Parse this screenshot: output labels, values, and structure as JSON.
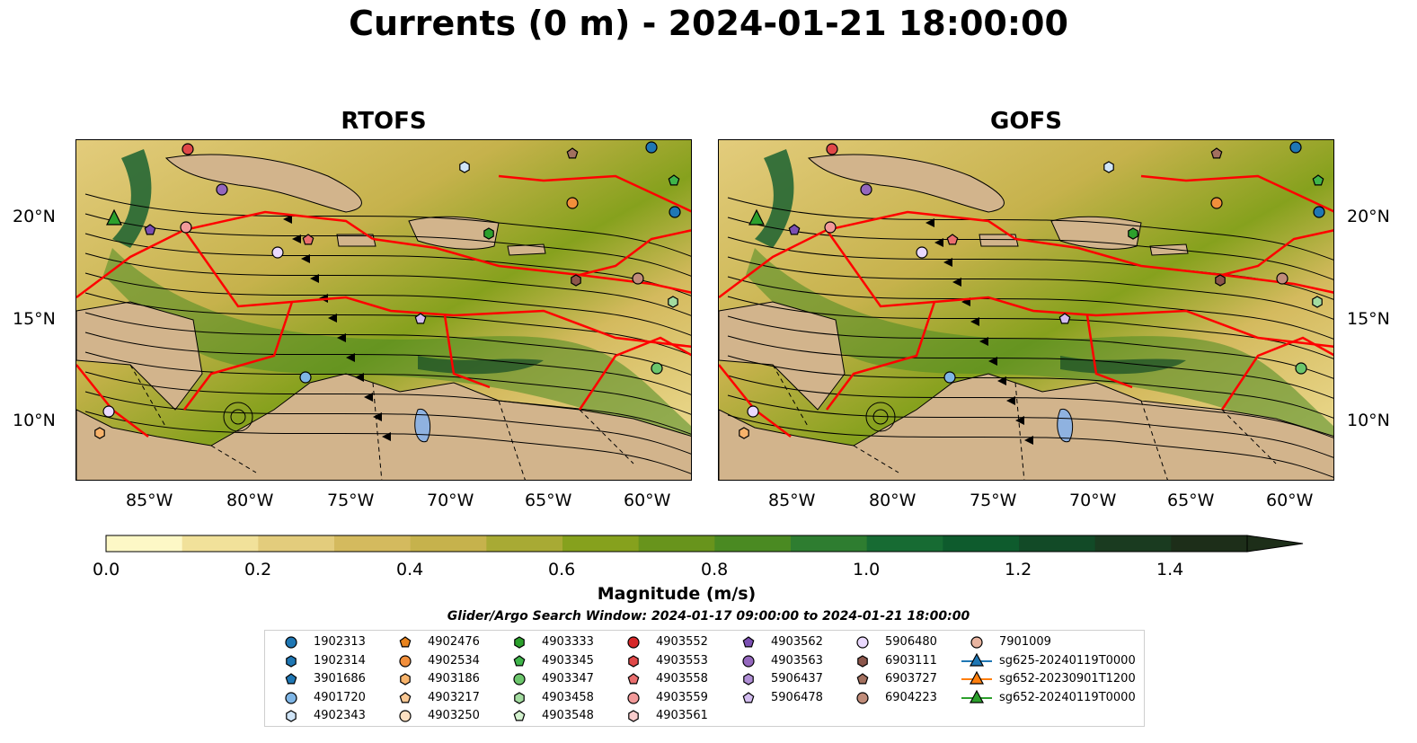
{
  "title": "Currents (0 m) - 2024-01-21 18:00:00",
  "panels": [
    {
      "title": "RTOFS"
    },
    {
      "title": "GOFS"
    }
  ],
  "x_ticks": [
    "85°W",
    "80°W",
    "75°W",
    "70°W",
    "65°W",
    "60°W"
  ],
  "y_ticks": [
    "20°N",
    "15°N",
    "10°N"
  ],
  "colorbar": {
    "label": "Magnitude (m/s)",
    "ticks": [
      "0.0",
      "0.2",
      "0.4",
      "0.6",
      "0.8",
      "1.0",
      "1.2",
      "1.4"
    ],
    "range": [
      0,
      1.5
    ],
    "extend": "max",
    "colors": [
      "#fdf8c6",
      "#f1e19a",
      "#e3cc7c",
      "#d4ba5e",
      "#c6b24c",
      "#a8aa34",
      "#86a11d",
      "#68941c",
      "#4a8a22",
      "#2e7d30",
      "#176b33",
      "#0e5b2d",
      "#124a27",
      "#1a3b20",
      "#1d2e19"
    ]
  },
  "search_window": "Glider/Argo Search Window: 2024-01-17 09:00:00 to 2024-01-21 18:00:00",
  "legend": [
    {
      "label": "1902313",
      "marker": "circle",
      "color": "#1f77b4"
    },
    {
      "label": "1902314",
      "marker": "hexagon",
      "color": "#1f77b4"
    },
    {
      "label": "3901686",
      "marker": "pentagon",
      "color": "#1f77b4"
    },
    {
      "label": "4901720",
      "marker": "circle",
      "color": "#7fb6e6"
    },
    {
      "label": "4902343",
      "marker": "hexagon",
      "color": "#cfe4f7"
    },
    {
      "label": "4902476",
      "marker": "pentagon",
      "color": "#e8831e"
    },
    {
      "label": "4902534",
      "marker": "circle",
      "color": "#f28f3b"
    },
    {
      "label": "4903186",
      "marker": "hexagon",
      "color": "#f7b36b"
    },
    {
      "label": "4903217",
      "marker": "pentagon",
      "color": "#f9c894"
    },
    {
      "label": "4903250",
      "marker": "circle",
      "color": "#fde0c2"
    },
    {
      "label": "4903333",
      "marker": "hexagon",
      "color": "#2ca02c"
    },
    {
      "label": "4903345",
      "marker": "pentagon",
      "color": "#3fb54a"
    },
    {
      "label": "4903347",
      "marker": "circle",
      "color": "#6cc66c"
    },
    {
      "label": "4903458",
      "marker": "hexagon",
      "color": "#a3dca0"
    },
    {
      "label": "4903548",
      "marker": "pentagon",
      "color": "#d4f2cf"
    },
    {
      "label": "4903552",
      "marker": "circle",
      "color": "#d62728"
    },
    {
      "label": "4903553",
      "marker": "hexagon",
      "color": "#e04848"
    },
    {
      "label": "4903558",
      "marker": "pentagon",
      "color": "#ea6e6e"
    },
    {
      "label": "4903559",
      "marker": "circle",
      "color": "#f29a9a"
    },
    {
      "label": "4903561",
      "marker": "hexagon",
      "color": "#f8cccc"
    },
    {
      "label": "4903562",
      "marker": "pentagon",
      "color": "#7b4fb3"
    },
    {
      "label": "4903563",
      "marker": "circle",
      "color": "#9467bd"
    },
    {
      "label": "5906437",
      "marker": "hexagon",
      "color": "#b08fd6"
    },
    {
      "label": "5906478",
      "marker": "pentagon",
      "color": "#d3bdf0"
    },
    {
      "label": "5906480",
      "marker": "circle",
      "color": "#ead9ff"
    },
    {
      "label": "6903111",
      "marker": "hexagon",
      "color": "#8c564b"
    },
    {
      "label": "6903727",
      "marker": "pentagon",
      "color": "#a3705f"
    },
    {
      "label": "6904223",
      "marker": "circle",
      "color": "#c08c7a"
    },
    {
      "label": "7901009",
      "marker": "circle",
      "color": "#e8b4a0"
    },
    {
      "label": "sg625-20240119T0000",
      "marker": "triangle-line",
      "color": "#1f77b4"
    },
    {
      "label": "sg652-20230901T1200",
      "marker": "triangle-line",
      "color": "#ff7f0e"
    },
    {
      "label": "sg652-20240119T0000",
      "marker": "triangle-line",
      "color": "#2ca02c"
    }
  ]
}
